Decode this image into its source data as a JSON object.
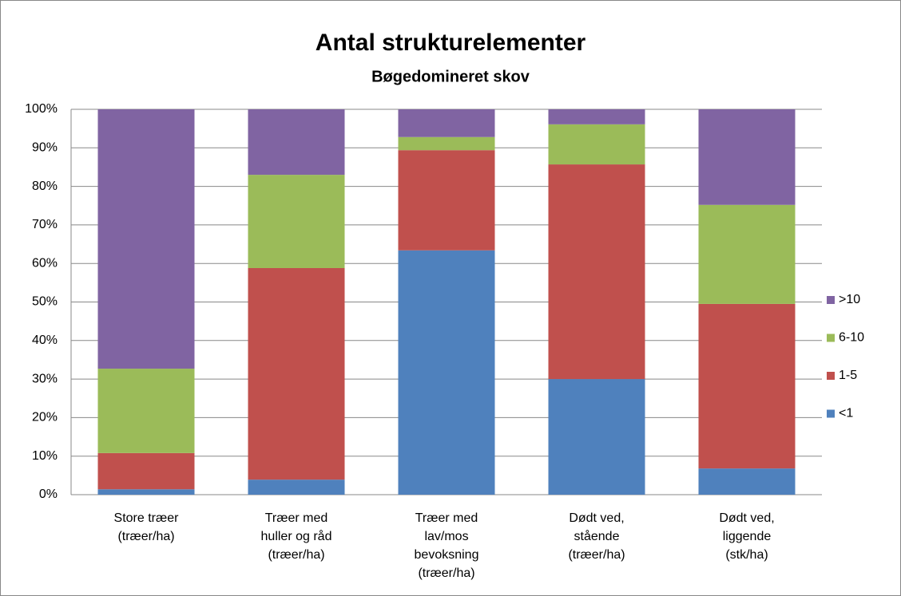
{
  "chart_data": {
    "type": "stacked_bar_100",
    "title": "Antal strukturelementer",
    "subtitle": "Bøgedomineret skov",
    "categories": [
      "Store træer\n(træer/ha)",
      "Træer med\nhuller og råd\n(træer/ha)",
      "Træer med\nlav/mos\nbevoksning\n(træer/ha)",
      "Dødt ved,\nstående\n(træer/ha)",
      "Dødt ved,\nliggende\n(stk/ha)"
    ],
    "series": [
      {
        "name": "<1",
        "color": "#4f81bd",
        "values": [
          1.4,
          3.9,
          63.4,
          30.0,
          6.8
        ]
      },
      {
        "name": "1-5",
        "color": "#c0504d",
        "values": [
          9.4,
          54.9,
          26.0,
          55.7,
          42.7
        ]
      },
      {
        "name": "6-10",
        "color": "#9bbb59",
        "values": [
          21.9,
          24.2,
          3.4,
          10.4,
          25.7
        ]
      },
      {
        "name": ">10",
        "color": "#8064a2",
        "values": [
          67.3,
          17.0,
          7.2,
          3.9,
          24.8
        ]
      }
    ],
    "ylim": [
      0,
      100
    ],
    "yticks": [
      {
        "value": 0,
        "label": "0%"
      },
      {
        "value": 10,
        "label": "10%"
      },
      {
        "value": 20,
        "label": "20%"
      },
      {
        "value": 30,
        "label": "30%"
      },
      {
        "value": 40,
        "label": "40%"
      },
      {
        "value": 50,
        "label": "50%"
      },
      {
        "value": 60,
        "label": "60%"
      },
      {
        "value": 70,
        "label": "70%"
      },
      {
        "value": 80,
        "label": "80%"
      },
      {
        "value": 90,
        "label": "90%"
      },
      {
        "value": 100,
        "label": "100%"
      }
    ],
    "grid": true,
    "legend": "right"
  }
}
